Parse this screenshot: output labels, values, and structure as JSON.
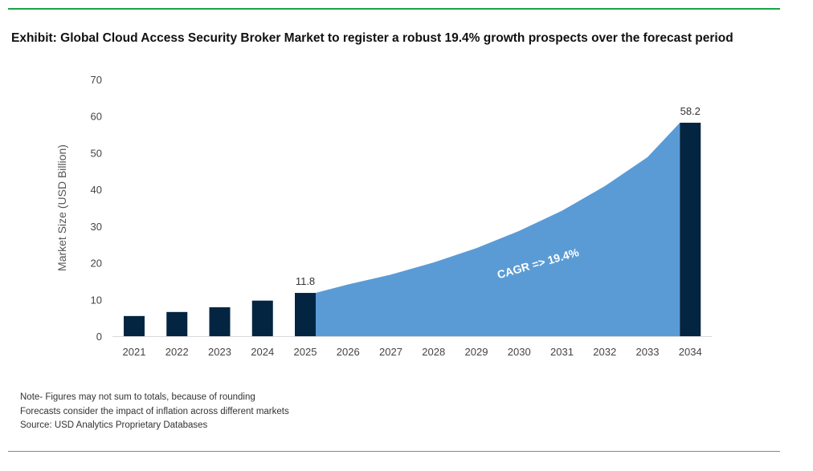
{
  "title": "Exhibit: Global Cloud Access Security Broker Market to register a robust 19.4% growth prospects over the forecast period",
  "notes": [
    "Note- Figures may not sum to totals, because of rounding",
    "Forecasts consider the impact of inflation across different markets",
    "Source: USD Analytics Proprietary Databases"
  ],
  "colors": {
    "bar": "#032541",
    "area": "#5b9bd5",
    "top_rule": "#1aa34a"
  },
  "chart_data": {
    "type": "bar",
    "title": "",
    "xlabel": "",
    "ylabel": "Market Size (USD Billion)",
    "ylim": [
      0,
      70
    ],
    "yticks": [
      0,
      10,
      20,
      30,
      40,
      50,
      60,
      70
    ],
    "grid": false,
    "categories": [
      "2021",
      "2022",
      "2023",
      "2024",
      "2025",
      "2026",
      "2027",
      "2028",
      "2029",
      "2030",
      "2031",
      "2032",
      "2033",
      "2034"
    ],
    "bars": [
      {
        "x": "2021",
        "value": 5.5
      },
      {
        "x": "2022",
        "value": 6.6
      },
      {
        "x": "2023",
        "value": 7.9
      },
      {
        "x": "2024",
        "value": 9.7
      },
      {
        "x": "2025",
        "value": 11.8,
        "label": "11.8"
      },
      {
        "x": "2034",
        "value": 58.2,
        "label": "58.2"
      }
    ],
    "area": {
      "x": [
        "2025",
        "2026",
        "2027",
        "2028",
        "2029",
        "2030",
        "2031",
        "2032",
        "2033",
        "2034"
      ],
      "values": [
        11.8,
        14.1,
        16.8,
        20.1,
        24.0,
        28.7,
        34.2,
        40.9,
        48.8,
        58.2
      ]
    },
    "annotation": "CAGR => 19.4%"
  }
}
